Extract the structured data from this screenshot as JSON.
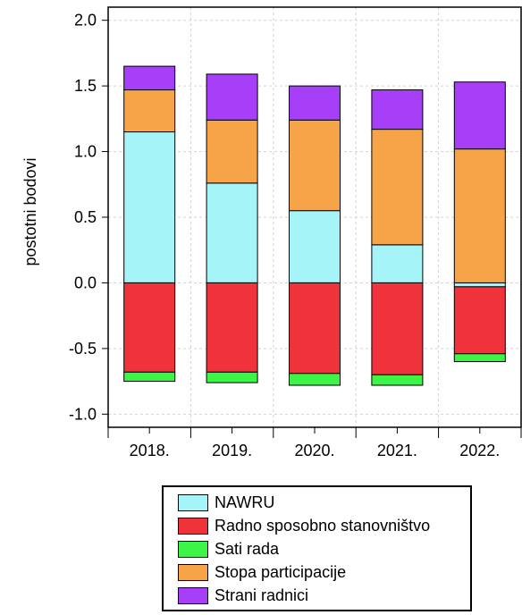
{
  "chart_data": {
    "type": "bar",
    "stacked": true,
    "categories": [
      "2018.",
      "2019.",
      "2020.",
      "2021.",
      "2022."
    ],
    "ylabel": "postotni bodovi",
    "xlabel": "",
    "ylim": [
      -1.1,
      2.1
    ],
    "yticks": [
      "2.0",
      "1.5",
      "1.0",
      "0.5",
      "0.0",
      "-0.5",
      "-1.0"
    ],
    "grid": true,
    "legend_position": "bottom",
    "series": [
      {
        "name": "NAWRU",
        "color": "#a4f4f8",
        "values": [
          1.15,
          0.76,
          0.55,
          0.29,
          -0.03
        ]
      },
      {
        "name": "Radno sposobno stanovništvo",
        "color": "#f0333a",
        "values": [
          -0.68,
          -0.68,
          -0.69,
          -0.7,
          -0.51
        ]
      },
      {
        "name": "Sati rada",
        "color": "#3df546",
        "values": [
          -0.07,
          -0.08,
          -0.09,
          -0.08,
          -0.06
        ]
      },
      {
        "name": "Stopa participacije",
        "color": "#f7a348",
        "values": [
          0.32,
          0.48,
          0.69,
          0.88,
          1.02
        ]
      },
      {
        "name": "Strani radnici",
        "color": "#a63ff7",
        "values": [
          0.18,
          0.35,
          0.26,
          0.3,
          0.51
        ]
      }
    ]
  }
}
